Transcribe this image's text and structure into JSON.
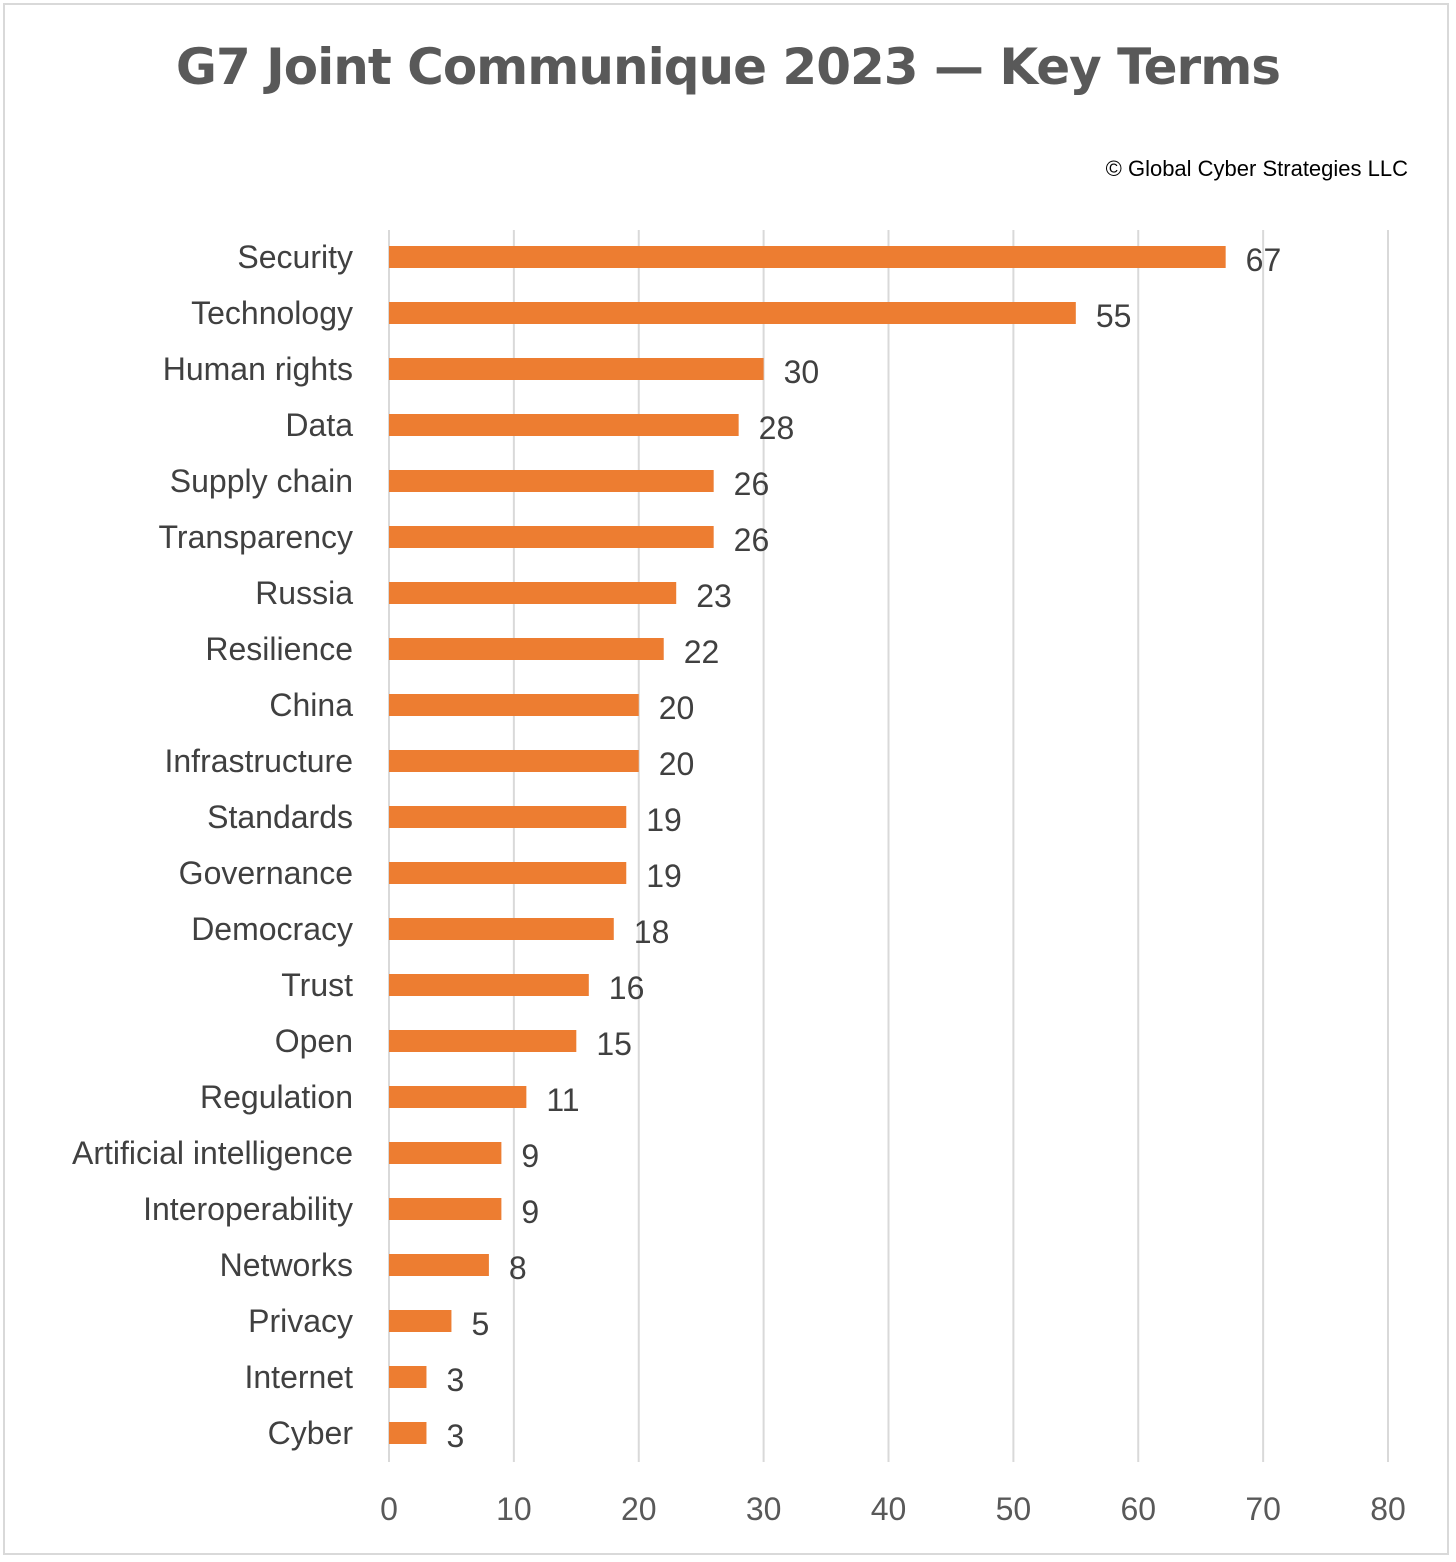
{
  "chart_data": {
    "type": "bar",
    "orientation": "horizontal",
    "title": "G7 Joint Communique 2023 — Key Terms",
    "credit": "© Global Cyber Strategies LLC",
    "categories": [
      "Security",
      "Technology",
      "Human rights",
      "Data",
      "Supply chain",
      "Transparency",
      "Russia",
      "Resilience",
      "China",
      "Infrastructure",
      "Standards",
      "Governance",
      "Democracy",
      "Trust",
      "Open",
      "Regulation",
      "Artificial intelligence",
      "Interoperability",
      "Networks",
      "Privacy",
      "Internet",
      "Cyber"
    ],
    "values": [
      67,
      55,
      30,
      28,
      26,
      26,
      23,
      22,
      20,
      20,
      19,
      19,
      18,
      16,
      15,
      11,
      9,
      9,
      8,
      5,
      3,
      3
    ],
    "xlim": [
      0,
      80
    ],
    "xticks": [
      0,
      10,
      20,
      30,
      40,
      50,
      60,
      70,
      80
    ],
    "grid": true,
    "legend": "none",
    "bar_color": "#ED7D31",
    "grid_color": "#D9D9D9"
  }
}
